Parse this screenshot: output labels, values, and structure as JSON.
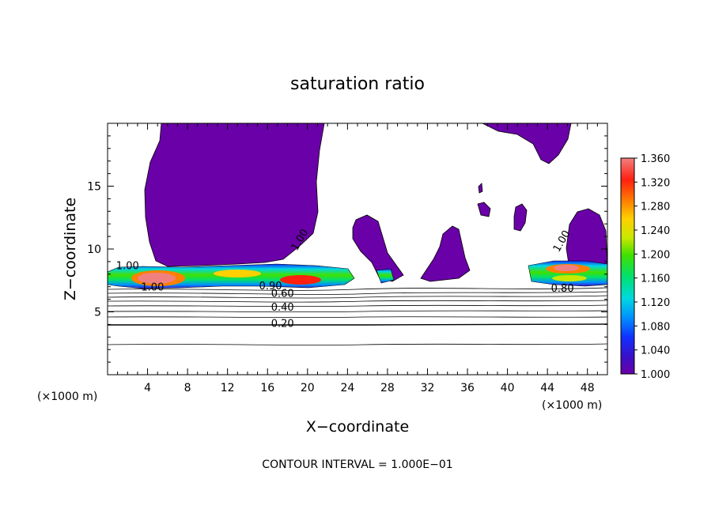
{
  "chart_data": {
    "type": "heatmap",
    "title": "saturation ratio",
    "xlabel": "X−coordinate",
    "ylabel": "Z−coordinate",
    "x_unit_left": "(×1000 m)",
    "x_unit_right": "(×1000 m)",
    "xlim": [
      0,
      50
    ],
    "ylim": [
      0,
      20
    ],
    "xticks": [
      4,
      8,
      12,
      16,
      20,
      24,
      28,
      32,
      36,
      40,
      44,
      48
    ],
    "yticks": [
      5,
      10,
      15
    ],
    "footer": "CONTOUR INTERVAL = 1.000E−01",
    "colorbar": {
      "min": 1.0,
      "max": 1.36,
      "labels": [
        "1.360",
        "1.320",
        "1.280",
        "1.240",
        "1.200",
        "1.160",
        "1.120",
        "1.080",
        "1.040",
        "1.000"
      ],
      "colors": [
        "#6a00a8",
        "#3a10c8",
        "#1030ff",
        "#0090ff",
        "#00d8e0",
        "#00e070",
        "#40e000",
        "#c8e800",
        "#ffd000",
        "#ff8000",
        "#ff2010",
        "#f08080"
      ]
    },
    "contour_labels": [
      {
        "text": "1.00",
        "x": 2.0,
        "z": 8.4
      },
      {
        "text": "1.00",
        "x": 4.5,
        "z": 6.7
      },
      {
        "text": "1.00",
        "x": 19.5,
        "z": 10.6
      },
      {
        "text": "1.00",
        "x": 45.7,
        "z": 10.5
      },
      {
        "text": "0.90",
        "x": 16.3,
        "z": 6.8
      },
      {
        "text": "0.80",
        "x": 45.5,
        "z": 6.6
      },
      {
        "text": "0.60",
        "x": 17.5,
        "z": 6.2
      },
      {
        "text": "0.40",
        "x": 17.5,
        "z": 5.1
      },
      {
        "text": "0.20",
        "x": 17.5,
        "z": 3.8
      }
    ]
  }
}
